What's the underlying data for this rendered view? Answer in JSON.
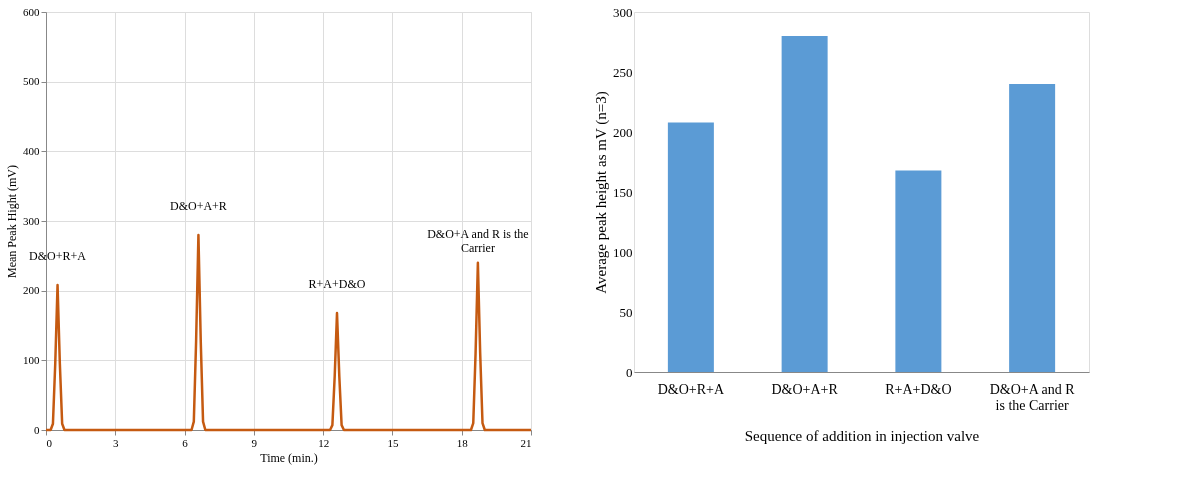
{
  "chart_data": [
    {
      "type": "line",
      "xlabel": "Time (min.)",
      "ylabel": "Mean Peak Hight  (mV)",
      "x": [
        0,
        0.2,
        0.3,
        0.4,
        0.5,
        0.6,
        0.7,
        0.8,
        6.3,
        6.4,
        6.5,
        6.6,
        6.7,
        6.8,
        6.9,
        12.3,
        12.4,
        12.5,
        12.6,
        12.7,
        12.8,
        12.9,
        18.4,
        18.5,
        18.6,
        18.7,
        18.8,
        18.9,
        19.0,
        21
      ],
      "series": [
        {
          "color": "#c55a11",
          "values": [
            0,
            0,
            9,
            95,
            208,
            95,
            9,
            0,
            0,
            12,
            128,
            280,
            128,
            12,
            0,
            0,
            7,
            77,
            168,
            77,
            7,
            0,
            0,
            10,
            110,
            240,
            110,
            10,
            0,
            0
          ]
        }
      ],
      "xlim": [
        0,
        21
      ],
      "xticks": [
        0,
        3,
        6,
        9,
        12,
        15,
        18,
        21
      ],
      "ylim": [
        0,
        600
      ],
      "yticks": [
        0,
        100,
        200,
        300,
        400,
        500,
        600
      ],
      "grid": true,
      "line_style": "solid",
      "annotations": [
        {
          "text": "D&O+R+A",
          "x": 0.5,
          "y": 208
        },
        {
          "text": "D&O+A+R",
          "x": 6.6,
          "y": 280
        },
        {
          "text": "R+A+D&O",
          "x": 12.6,
          "y": 168
        },
        {
          "text": "D&O+A and R is the\nCarrier",
          "x": 18.7,
          "y": 240
        }
      ]
    },
    {
      "type": "bar",
      "xlabel": "Sequence of addition in injection valve",
      "ylabel": "Average  peak height as mV (n=3)",
      "categories": [
        "D&O+R+A",
        "D&O+A+R",
        "R+A+D&O",
        "D&O+A and R\nis the Carrier"
      ],
      "values": [
        208,
        280,
        168,
        240
      ],
      "color": "#5b9bd5",
      "ylim": [
        0,
        300
      ],
      "yticks": [
        0,
        50,
        100,
        150,
        200,
        250,
        300
      ],
      "grid": false
    }
  ]
}
